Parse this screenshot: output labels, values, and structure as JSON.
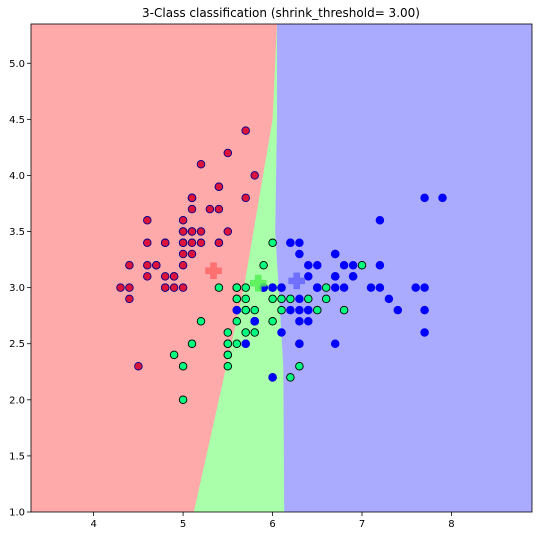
{
  "chart_data": {
    "type": "scatter",
    "title": "3-Class classification (shrink_threshold=   3.00)",
    "xlabel": "",
    "ylabel": "",
    "xlim": [
      3.3,
      8.9
    ],
    "ylim": [
      1.0,
      5.35
    ],
    "x_ticks": [
      "4",
      "5",
      "6",
      "7",
      "8"
    ],
    "y_ticks": [
      "1.0",
      "1.5",
      "2.0",
      "2.5",
      "3.0",
      "3.5",
      "4.0",
      "4.5",
      "5.0"
    ],
    "grid": false,
    "legend": "none",
    "regions": [
      {
        "class": 0,
        "color": "#ffaaaa"
      },
      {
        "class": 1,
        "color": "#aaffaa"
      },
      {
        "class": 2,
        "color": "#aaaaff"
      }
    ],
    "boundaries": {
      "red_green": [
        [
          5.12,
          1.0
        ],
        [
          5.68,
          3.0
        ],
        [
          6.0,
          4.5
        ],
        [
          6.05,
          5.35
        ]
      ],
      "green_blue": [
        [
          6.13,
          1.0
        ],
        [
          6.12,
          2.3
        ],
        [
          6.03,
          3.5
        ],
        [
          6.05,
          4.5
        ],
        [
          6.05,
          5.35
        ]
      ]
    },
    "series": [
      {
        "color": "#dc143c",
        "edgecolor": "#00008b",
        "points": [
          [
            5.1,
            3.5
          ],
          [
            4.9,
            3.0
          ],
          [
            4.7,
            3.2
          ],
          [
            4.6,
            3.1
          ],
          [
            5.0,
            3.6
          ],
          [
            5.4,
            3.9
          ],
          [
            4.6,
            3.4
          ],
          [
            5.0,
            3.4
          ],
          [
            4.4,
            2.9
          ],
          [
            4.9,
            3.1
          ],
          [
            5.4,
            3.7
          ],
          [
            4.8,
            3.4
          ],
          [
            4.8,
            3.0
          ],
          [
            4.3,
            3.0
          ],
          [
            5.8,
            4.0
          ],
          [
            5.7,
            4.4
          ],
          [
            5.4,
            3.9
          ],
          [
            5.1,
            3.5
          ],
          [
            5.7,
            3.8
          ],
          [
            5.1,
            3.8
          ],
          [
            5.4,
            3.4
          ],
          [
            5.1,
            3.7
          ],
          [
            4.6,
            3.6
          ],
          [
            5.1,
            3.3
          ],
          [
            4.8,
            3.4
          ],
          [
            5.0,
            3.0
          ],
          [
            5.0,
            3.4
          ],
          [
            5.2,
            3.5
          ],
          [
            5.2,
            3.4
          ],
          [
            4.7,
            3.2
          ],
          [
            4.8,
            3.1
          ],
          [
            5.4,
            3.4
          ],
          [
            5.2,
            4.1
          ],
          [
            5.5,
            4.2
          ],
          [
            4.9,
            3.1
          ],
          [
            5.0,
            3.2
          ],
          [
            5.5,
            3.5
          ],
          [
            4.4,
            3.0
          ],
          [
            5.1,
            3.4
          ],
          [
            5.0,
            3.5
          ],
          [
            4.5,
            2.3
          ],
          [
            4.4,
            3.2
          ],
          [
            5.0,
            3.5
          ],
          [
            5.1,
            3.8
          ],
          [
            4.8,
            3.0
          ],
          [
            5.1,
            3.8
          ],
          [
            4.6,
            3.2
          ],
          [
            5.3,
            3.7
          ],
          [
            5.0,
            3.3
          ],
          [
            5.6,
            3.0
          ]
        ]
      },
      {
        "color": "#00ff7f",
        "edgecolor": "#000000",
        "points": [
          [
            5.5,
            2.3
          ],
          [
            5.7,
            2.8
          ],
          [
            4.9,
            2.4
          ],
          [
            5.2,
            2.7
          ],
          [
            5.0,
            2.0
          ],
          [
            5.9,
            3.0
          ],
          [
            6.0,
            2.2
          ],
          [
            5.6,
            2.9
          ],
          [
            5.6,
            3.0
          ],
          [
            5.8,
            2.7
          ],
          [
            5.6,
            2.5
          ],
          [
            5.9,
            3.2
          ],
          [
            6.1,
            2.8
          ],
          [
            6.4,
            2.9
          ],
          [
            5.7,
            2.6
          ],
          [
            5.5,
            2.4
          ],
          [
            5.5,
            2.4
          ],
          [
            5.8,
            2.7
          ],
          [
            6.0,
            2.7
          ],
          [
            5.4,
            3.0
          ],
          [
            6.0,
            3.4
          ],
          [
            6.3,
            2.3
          ],
          [
            5.6,
            3.0
          ],
          [
            5.5,
            2.5
          ],
          [
            5.5,
            2.6
          ],
          [
            5.8,
            2.6
          ],
          [
            5.0,
            2.3
          ],
          [
            5.6,
            2.7
          ],
          [
            5.7,
            3.0
          ],
          [
            5.7,
            2.9
          ],
          [
            5.1,
            2.5
          ],
          [
            5.7,
            2.8
          ],
          [
            6.2,
            2.2
          ],
          [
            6.2,
            2.9
          ],
          [
            6.6,
            3.0
          ],
          [
            6.5,
            2.8
          ],
          [
            6.6,
            2.9
          ],
          [
            6.8,
            2.8
          ],
          [
            7.0,
            3.2
          ],
          [
            6.0,
            2.9
          ],
          [
            6.1,
            2.9
          ],
          [
            5.5,
            2.5
          ],
          [
            5.6,
            2.8
          ],
          [
            5.7,
            2.5
          ],
          [
            6.0,
            3.0
          ],
          [
            5.8,
            2.8
          ],
          [
            6.1,
            3.0
          ],
          [
            5.6,
            2.9
          ],
          [
            5.9,
            3.0
          ],
          [
            6.3,
            2.5
          ]
        ]
      },
      {
        "color": "#0000ff",
        "edgecolor": "#0000ff",
        "points": [
          [
            6.3,
            3.3
          ],
          [
            5.8,
            2.7
          ],
          [
            7.1,
            3.0
          ],
          [
            6.3,
            2.9
          ],
          [
            6.5,
            3.0
          ],
          [
            7.6,
            3.0
          ],
          [
            7.3,
            2.9
          ],
          [
            6.7,
            2.5
          ],
          [
            7.2,
            3.6
          ],
          [
            6.5,
            3.2
          ],
          [
            6.4,
            2.7
          ],
          [
            6.8,
            3.0
          ],
          [
            5.7,
            2.5
          ],
          [
            6.4,
            3.2
          ],
          [
            7.7,
            3.8
          ],
          [
            7.7,
            2.6
          ],
          [
            6.0,
            2.2
          ],
          [
            6.9,
            3.2
          ],
          [
            5.6,
            2.8
          ],
          [
            7.7,
            2.8
          ],
          [
            6.3,
            2.7
          ],
          [
            6.7,
            3.3
          ],
          [
            7.2,
            3.2
          ],
          [
            6.2,
            2.8
          ],
          [
            6.1,
            3.0
          ],
          [
            6.4,
            2.8
          ],
          [
            7.2,
            3.0
          ],
          [
            7.4,
            2.8
          ],
          [
            7.9,
            3.8
          ],
          [
            6.4,
            2.8
          ],
          [
            6.1,
            2.6
          ],
          [
            7.7,
            3.0
          ],
          [
            6.3,
            3.4
          ],
          [
            6.4,
            3.1
          ],
          [
            6.0,
            3.0
          ],
          [
            6.9,
            3.1
          ],
          [
            6.7,
            3.1
          ],
          [
            6.9,
            3.1
          ],
          [
            5.8,
            2.7
          ],
          [
            6.8,
            3.2
          ],
          [
            6.7,
            3.3
          ],
          [
            6.7,
            3.0
          ],
          [
            6.3,
            2.5
          ],
          [
            6.5,
            3.0
          ],
          [
            6.2,
            3.4
          ],
          [
            5.9,
            3.0
          ],
          [
            6.7,
            3.1
          ],
          [
            6.3,
            2.8
          ],
          [
            6.2,
            3.4
          ],
          [
            6.5,
            3.0
          ]
        ]
      }
    ],
    "centroids": [
      {
        "x": 5.34,
        "y": 3.15,
        "color": "#ff6666"
      },
      {
        "x": 5.84,
        "y": 3.04,
        "color": "#55ee55"
      },
      {
        "x": 6.27,
        "y": 3.06,
        "color": "#6666ff"
      }
    ]
  }
}
